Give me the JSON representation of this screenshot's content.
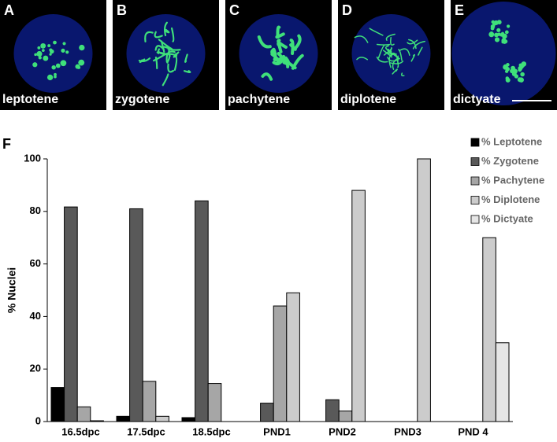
{
  "panels": [
    {
      "letter": "A",
      "label": "leptotene"
    },
    {
      "letter": "B",
      "label": "zygotene"
    },
    {
      "letter": "C",
      "label": "pachytene"
    },
    {
      "letter": "D",
      "label": "diplotene"
    },
    {
      "letter": "E",
      "label": "dictyate"
    }
  ],
  "chart_data": {
    "type": "bar",
    "panel_letter": "F",
    "y_label": "% Nuclei",
    "categories": [
      "16.5dpc",
      "17.5dpc",
      "18.5dpc",
      "PND1",
      "PND2",
      "PND3",
      "PND 4"
    ],
    "series": [
      {
        "name": "% Leptotene",
        "color": "#000000",
        "values": [
          13,
          2,
          1.5,
          0,
          0,
          0,
          0
        ]
      },
      {
        "name": "% Zygotene",
        "color": "#595959",
        "values": [
          81.7,
          81,
          84,
          7,
          8.3,
          0,
          0
        ]
      },
      {
        "name": "% Pachytene",
        "color": "#a6a6a6",
        "values": [
          5.6,
          15.3,
          14.5,
          44,
          4,
          0,
          0
        ]
      },
      {
        "name": "% Diplotene",
        "color": "#cccccc",
        "values": [
          0.3,
          2,
          0,
          49,
          88,
          100,
          70
        ]
      },
      {
        "name": "% Dictyate",
        "color": "#e6e6e6",
        "values": [
          0,
          0,
          0,
          0,
          0,
          0,
          30
        ]
      }
    ],
    "ylim": [
      0,
      100
    ],
    "yticks": [
      0,
      20,
      40,
      60,
      80,
      100
    ],
    "legend": "top-right"
  }
}
